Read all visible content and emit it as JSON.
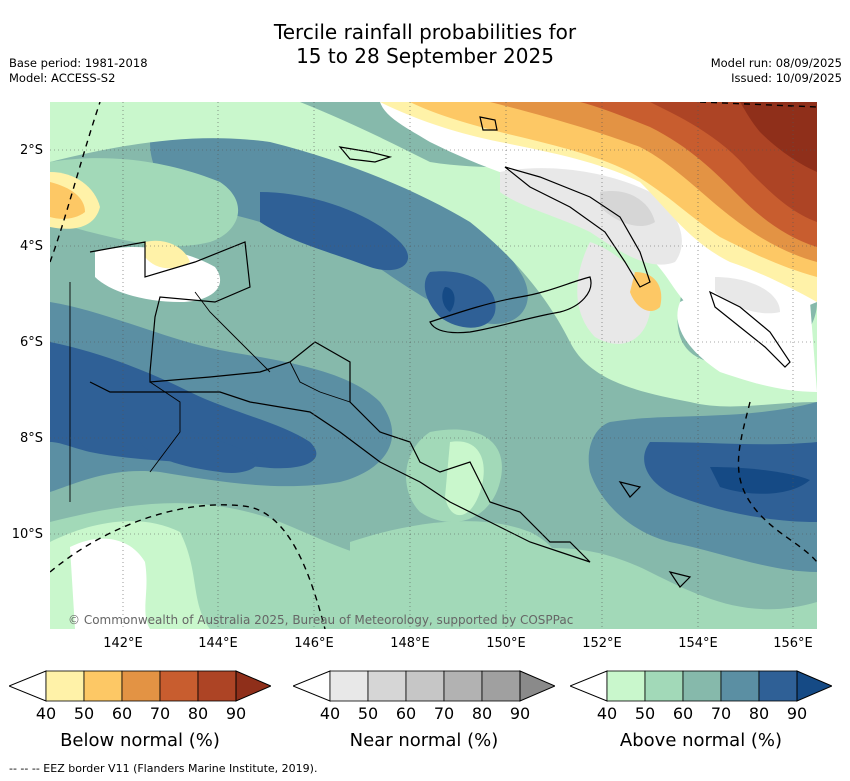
{
  "header": {
    "title_line1": "Tercile rainfall probabilities for",
    "title_line2": "15 to 28 September 2025",
    "base_period": "Base period: 1981-2018",
    "model": "Model: ACCESS-S2",
    "model_run": "Model run: 08/09/2025",
    "issued": "Issued: 10/09/2025"
  },
  "map": {
    "lat_labels": [
      "2°S",
      "4°S",
      "6°S",
      "8°S",
      "10°S"
    ],
    "lon_labels": [
      "142°E",
      "144°E",
      "146°E",
      "148°E",
      "150°E",
      "152°E",
      "154°E",
      "156°E"
    ],
    "copyright": "© Commonwealth of Australia 2025, Bureau of Meteorology, supported by COSPPac"
  },
  "legends": [
    {
      "title": "Below normal (%)",
      "ticks": [
        "40",
        "50",
        "60",
        "70",
        "80",
        "90"
      ],
      "colors": [
        "#fff2a8",
        "#fdc865",
        "#e39344",
        "#c85d2f",
        "#ad4425",
        "#8f2f1a"
      ]
    },
    {
      "title": "Near normal (%)",
      "ticks": [
        "40",
        "50",
        "60",
        "70",
        "80",
        "90"
      ],
      "colors": [
        "#e8e8e8",
        "#d6d6d6",
        "#c6c6c6",
        "#b2b2b2",
        "#a0a0a0",
        "#8a8a8a"
      ]
    },
    {
      "title": "Above normal (%)",
      "ticks": [
        "40",
        "50",
        "60",
        "70",
        "80",
        "90"
      ],
      "colors": [
        "#c9f7cc",
        "#a2d9b8",
        "#86b9ab",
        "#5b8fa3",
        "#2f6096",
        "#154a85"
      ]
    }
  ],
  "footer": "-- -- -- EEZ border V11 (Flanders Marine Institute, 2019)."
}
